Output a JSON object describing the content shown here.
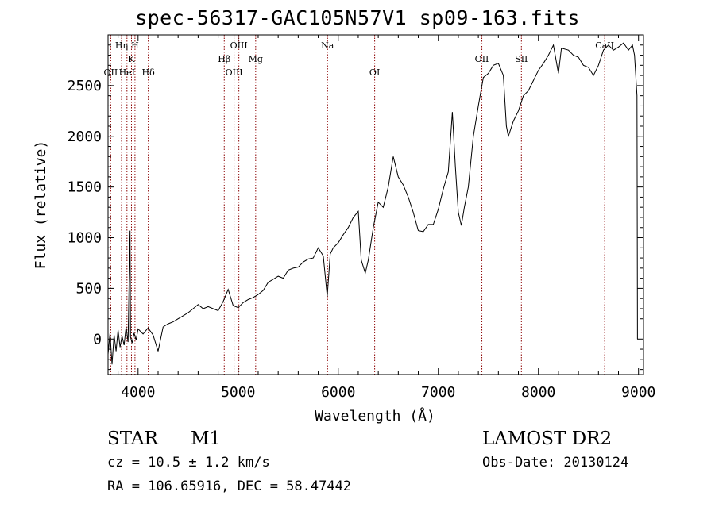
{
  "title": "spec-56317-GAC105N57V1_sp09-163.fits",
  "footer": {
    "class_label": "STAR",
    "subclass_label": "M1",
    "survey": "LAMOST DR2",
    "cz": "cz = 10.5 ± 1.2 km/s",
    "obs_date": "Obs-Date: 20130124",
    "coords": "RA = 106.65916, DEC =  58.47442"
  },
  "chart_data": {
    "type": "line",
    "xlabel": "Wavelength (Å)",
    "ylabel": "Flux (relative)",
    "xlim": [
      3700,
      9050
    ],
    "ylim": [
      -350,
      3000
    ],
    "xticks": [
      4000,
      5000,
      6000,
      7000,
      8000,
      9000
    ],
    "yticks": [
      0,
      500,
      1000,
      1500,
      2000,
      2500
    ],
    "line_color": "#000000",
    "marker_color": "#8b0000",
    "lines": [
      {
        "label": "OII",
        "x": 3727,
        "row": 3
      },
      {
        "label": "Hη",
        "x": 3835,
        "row": 1
      },
      {
        "label": "HeI",
        "x": 3889,
        "row": 3
      },
      {
        "label": "K",
        "x": 3934,
        "row": 2
      },
      {
        "label": "H",
        "x": 3969,
        "row": 1
      },
      {
        "label": "Hδ",
        "x": 4102,
        "row": 3
      },
      {
        "label": "Hβ",
        "x": 4861,
        "row": 2
      },
      {
        "label": "OIII",
        "x": 4959,
        "row": 3
      },
      {
        "label": "OIII",
        "x": 5007,
        "row": 1
      },
      {
        "label": "Mg",
        "x": 5175,
        "row": 2
      },
      {
        "label": "Na",
        "x": 5893,
        "row": 1
      },
      {
        "label": "OI",
        "x": 6364,
        "row": 3
      },
      {
        "label": "OII",
        "x": 7435,
        "row": 2
      },
      {
        "label": "SII",
        "x": 7830,
        "row": 2
      },
      {
        "label": "CaII",
        "x": 8662,
        "row": 1
      }
    ],
    "spectrum": [
      [
        3700,
        -150
      ],
      [
        3720,
        60
      ],
      [
        3740,
        -250
      ],
      [
        3760,
        40
      ],
      [
        3780,
        -120
      ],
      [
        3800,
        90
      ],
      [
        3820,
        -80
      ],
      [
        3840,
        30
      ],
      [
        3860,
        -60
      ],
      [
        3880,
        120
      ],
      [
        3900,
        -30
      ],
      [
        3920,
        1070
      ],
      [
        3925,
        20
      ],
      [
        3940,
        -40
      ],
      [
        3960,
        60
      ],
      [
        3980,
        -10
      ],
      [
        4000,
        100
      ],
      [
        4050,
        50
      ],
      [
        4100,
        110
      ],
      [
        4150,
        40
      ],
      [
        4200,
        -120
      ],
      [
        4250,
        120
      ],
      [
        4300,
        150
      ],
      [
        4350,
        170
      ],
      [
        4400,
        200
      ],
      [
        4450,
        230
      ],
      [
        4500,
        260
      ],
      [
        4550,
        300
      ],
      [
        4600,
        340
      ],
      [
        4650,
        300
      ],
      [
        4700,
        320
      ],
      [
        4750,
        300
      ],
      [
        4800,
        280
      ],
      [
        4850,
        370
      ],
      [
        4900,
        490
      ],
      [
        4950,
        330
      ],
      [
        5000,
        310
      ],
      [
        5050,
        360
      ],
      [
        5100,
        390
      ],
      [
        5150,
        410
      ],
      [
        5200,
        440
      ],
      [
        5250,
        480
      ],
      [
        5300,
        560
      ],
      [
        5350,
        590
      ],
      [
        5400,
        620
      ],
      [
        5450,
        600
      ],
      [
        5500,
        680
      ],
      [
        5550,
        700
      ],
      [
        5600,
        710
      ],
      [
        5650,
        760
      ],
      [
        5700,
        790
      ],
      [
        5750,
        800
      ],
      [
        5800,
        900
      ],
      [
        5850,
        820
      ],
      [
        5890,
        420
      ],
      [
        5920,
        840
      ],
      [
        5950,
        900
      ],
      [
        6000,
        950
      ],
      [
        6050,
        1030
      ],
      [
        6100,
        1100
      ],
      [
        6150,
        1200
      ],
      [
        6200,
        1260
      ],
      [
        6230,
        780
      ],
      [
        6270,
        650
      ],
      [
        6300,
        780
      ],
      [
        6350,
        1100
      ],
      [
        6400,
        1350
      ],
      [
        6450,
        1300
      ],
      [
        6500,
        1500
      ],
      [
        6550,
        1800
      ],
      [
        6600,
        1600
      ],
      [
        6650,
        1520
      ],
      [
        6700,
        1400
      ],
      [
        6750,
        1250
      ],
      [
        6800,
        1070
      ],
      [
        6850,
        1060
      ],
      [
        6900,
        1130
      ],
      [
        6950,
        1130
      ],
      [
        7000,
        1280
      ],
      [
        7050,
        1480
      ],
      [
        7100,
        1650
      ],
      [
        7140,
        2240
      ],
      [
        7170,
        1700
      ],
      [
        7200,
        1250
      ],
      [
        7230,
        1120
      ],
      [
        7260,
        1300
      ],
      [
        7300,
        1500
      ],
      [
        7350,
        2000
      ],
      [
        7400,
        2300
      ],
      [
        7450,
        2580
      ],
      [
        7500,
        2620
      ],
      [
        7550,
        2700
      ],
      [
        7600,
        2720
      ],
      [
        7650,
        2600
      ],
      [
        7680,
        2100
      ],
      [
        7700,
        2000
      ],
      [
        7750,
        2150
      ],
      [
        7800,
        2250
      ],
      [
        7850,
        2400
      ],
      [
        7900,
        2450
      ],
      [
        7950,
        2550
      ],
      [
        8000,
        2650
      ],
      [
        8050,
        2720
      ],
      [
        8100,
        2800
      ],
      [
        8150,
        2900
      ],
      [
        8200,
        2620
      ],
      [
        8230,
        2870
      ],
      [
        8300,
        2850
      ],
      [
        8350,
        2800
      ],
      [
        8400,
        2780
      ],
      [
        8450,
        2700
      ],
      [
        8500,
        2680
      ],
      [
        8550,
        2600
      ],
      [
        8600,
        2700
      ],
      [
        8650,
        2850
      ],
      [
        8700,
        2900
      ],
      [
        8750,
        2850
      ],
      [
        8800,
        2880
      ],
      [
        8850,
        2920
      ],
      [
        8900,
        2850
      ],
      [
        8940,
        2900
      ],
      [
        8960,
        2800
      ],
      [
        8985,
        2400
      ],
      [
        8990,
        0
      ]
    ]
  }
}
